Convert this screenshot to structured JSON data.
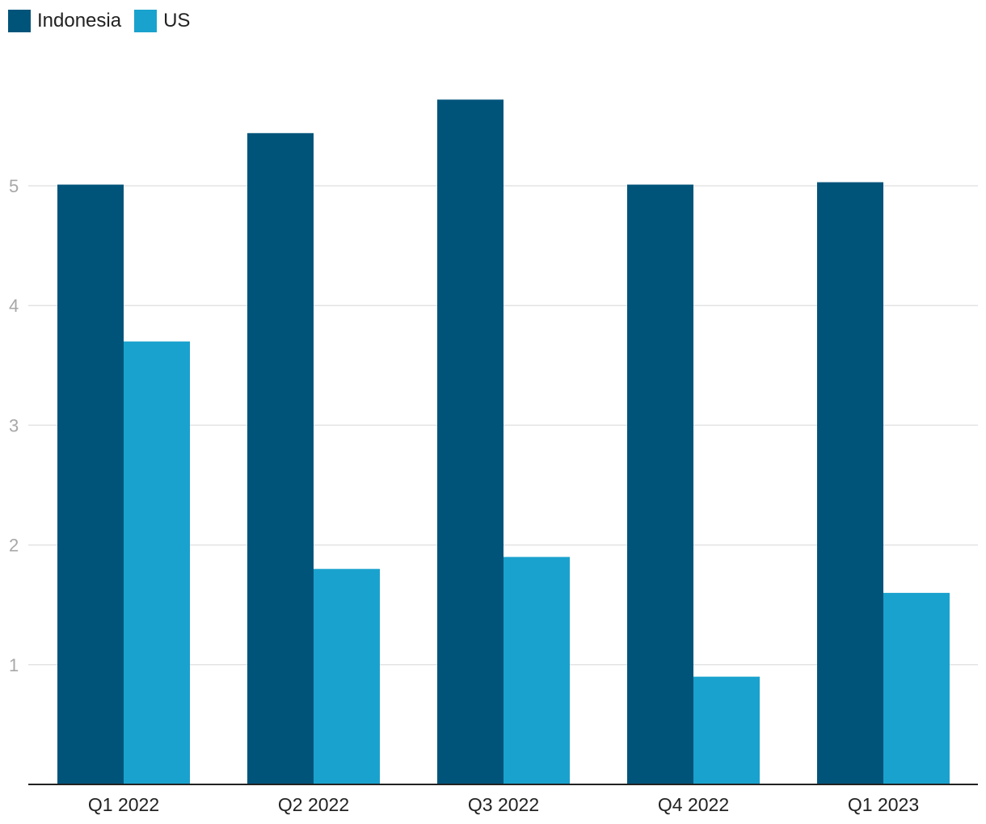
{
  "chart_data": {
    "type": "bar",
    "title": "",
    "xlabel": "",
    "ylabel": "",
    "categories": [
      "Q1 2022",
      "Q2 2022",
      "Q3 2022",
      "Q4 2022",
      "Q1 2023"
    ],
    "series": [
      {
        "name": "Indonesia",
        "color": "#00547a",
        "values": [
          5.01,
          5.44,
          5.72,
          5.01,
          5.03
        ]
      },
      {
        "name": "US",
        "color": "#1aa2ce",
        "values": [
          3.7,
          1.8,
          1.9,
          0.9,
          1.6
        ]
      }
    ],
    "yticks": [
      1,
      2,
      3,
      4,
      5
    ],
    "ylim": [
      0,
      6.5
    ],
    "grid": true,
    "legend_position": "top-left"
  }
}
